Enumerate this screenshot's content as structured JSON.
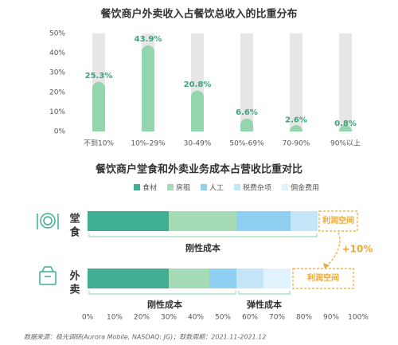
{
  "chart_data": [
    {
      "type": "bar",
      "title": "餐饮商户外卖收入占餐饮总收入的比重分布",
      "categories": [
        "不到10%",
        "10%-29%",
        "30-49%",
        "50%-69%",
        "70-90%",
        "90%以上"
      ],
      "values": [
        25.3,
        43.9,
        20.8,
        6.6,
        2.6,
        0.8
      ],
      "value_labels": [
        "25.3%",
        "43.9%",
        "20.8%",
        "6.6%",
        "2.6%",
        "0.8%"
      ],
      "color": "#93d6ad",
      "background_color": "#e6e6e6",
      "ylim": [
        0,
        50
      ],
      "yticks": [
        {
          "value": 0,
          "label": "0%"
        },
        {
          "value": 10,
          "label": "10%"
        },
        {
          "value": 20,
          "label": "20%"
        },
        {
          "value": 30,
          "label": "30%"
        },
        {
          "value": 40,
          "label": "40%"
        },
        {
          "value": 50,
          "label": "50%"
        }
      ]
    },
    {
      "type": "stacked_barh",
      "title": "餐饮商户堂食和外卖业务成本占营收比重对比",
      "categories": [
        "堂食",
        "外卖"
      ],
      "series": [
        {
          "name": "食材",
          "color": "#3fae92",
          "values": [
            30,
            30
          ]
        },
        {
          "name": "房租",
          "color": "#a5dcb7",
          "values": [
            25,
            15
          ]
        },
        {
          "name": "人工",
          "color": "#8fcff2",
          "values": [
            20,
            10
          ]
        },
        {
          "name": "税费杂项",
          "color": "#c4e6f8",
          "values": [
            10,
            10
          ]
        },
        {
          "name": "佣金费用",
          "color": "#e0f2fb",
          "values": [
            0,
            10
          ]
        }
      ],
      "xlim": [
        0,
        100
      ],
      "xticks": [
        {
          "value": 0,
          "label": "0%"
        },
        {
          "value": 10,
          "label": "10%"
        },
        {
          "value": 20,
          "label": "20%"
        },
        {
          "value": 30,
          "label": "30%"
        },
        {
          "value": 40,
          "label": "40%"
        },
        {
          "value": 50,
          "label": "50%"
        },
        {
          "value": 60,
          "label": "60%"
        },
        {
          "value": 70,
          "label": "70%"
        },
        {
          "value": 80,
          "label": "80%"
        },
        {
          "value": 90,
          "label": "90%"
        },
        {
          "value": 100,
          "label": "100%"
        }
      ],
      "annotations": [
        "刚性成本",
        "刚性成本",
        "弹性成本",
        "利润空间",
        "利润空间",
        "+10%"
      ]
    }
  ],
  "source": "数据来源：极光调研(Aurora Mobile, NASDAQ: JG)；取数周期：2021.11-2021.12"
}
